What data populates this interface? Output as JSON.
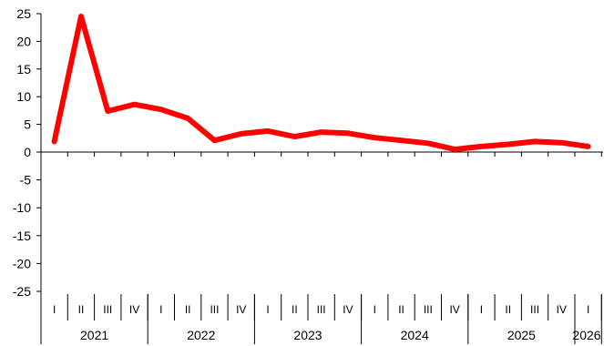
{
  "chart_data": {
    "type": "line",
    "title": "",
    "xlabel": "",
    "ylabel": "",
    "ylim": [
      -25,
      25
    ],
    "yticks": [
      25,
      20,
      15,
      10,
      5,
      0,
      -5,
      -10,
      -15,
      -20,
      -25
    ],
    "grid": false,
    "legend": "none",
    "line_color": "#ff0000",
    "quarters": [
      "I",
      "II",
      "III",
      "IV",
      "I",
      "II",
      "III",
      "IV",
      "I",
      "II",
      "III",
      "IV",
      "I",
      "II",
      "III",
      "IV",
      "I",
      "II",
      "III",
      "IV",
      "I"
    ],
    "years": [
      {
        "label": "2021",
        "count": 4
      },
      {
        "label": "2022",
        "count": 4
      },
      {
        "label": "2023",
        "count": 4
      },
      {
        "label": "2024",
        "count": 4
      },
      {
        "label": "2025",
        "count": 4
      },
      {
        "label": "2026",
        "count": 1
      }
    ],
    "series": [
      {
        "values": [
          1.9,
          24.5,
          7.4,
          8.6,
          7.7,
          6.1,
          2.1,
          3.3,
          3.8,
          2.8,
          3.6,
          3.4,
          2.6,
          2.1,
          1.6,
          0.5,
          1.0,
          1.4,
          1.9,
          1.7,
          1.0
        ]
      }
    ]
  }
}
